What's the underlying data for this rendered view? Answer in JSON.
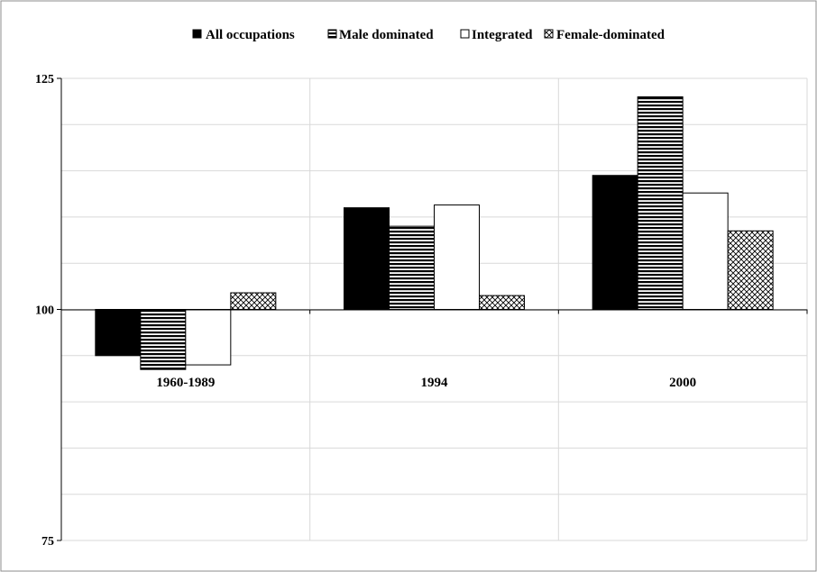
{
  "chart_data": {
    "type": "bar",
    "categories": [
      "1960-1989",
      "1994",
      "2000"
    ],
    "baseline": 100,
    "ylim": [
      75,
      125
    ],
    "yticks": [
      75,
      100,
      125
    ],
    "grid": true,
    "legend_position": "top",
    "series": [
      {
        "name": "All occupations",
        "values": [
          95.0,
          111.0,
          114.5
        ],
        "pattern": "solid",
        "color": "#000000"
      },
      {
        "name": "Male dominated",
        "values": [
          93.5,
          109.0,
          123.0
        ],
        "pattern": "horizontal-lines",
        "color": "#000000"
      },
      {
        "name": "Integrated",
        "values": [
          94.0,
          111.3,
          112.6
        ],
        "pattern": "none",
        "color": "#ffffff"
      },
      {
        "name": "Female-dominated",
        "values": [
          101.8,
          101.5,
          108.5
        ],
        "pattern": "crosshatch",
        "color": "#000000"
      }
    ]
  }
}
